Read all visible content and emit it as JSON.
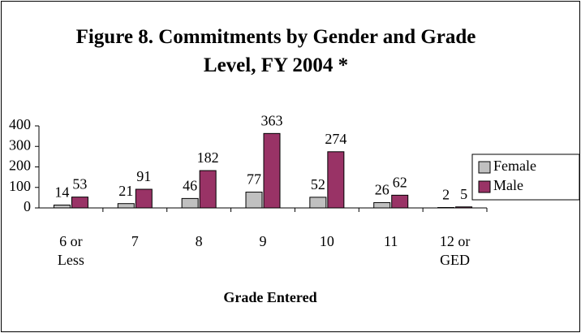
{
  "chart_data": {
    "type": "bar",
    "title": "Figure 8. Commitments by Gender and Grade Level, FY 2004 *",
    "x_label": "Grade Entered",
    "categories": [
      "6 or Less",
      "7",
      "8",
      "9",
      "10",
      "11",
      "12 or GED"
    ],
    "series": [
      {
        "name": "Female",
        "color": "#c0c0c0",
        "values": [
          14,
          21,
          46,
          77,
          52,
          26,
          2
        ]
      },
      {
        "name": "Male",
        "color": "#993366",
        "values": [
          53,
          91,
          182,
          363,
          274,
          62,
          5
        ]
      }
    ],
    "ylim": [
      0,
      400
    ],
    "yticks": [
      0,
      100,
      200,
      300,
      400
    ],
    "grid": false,
    "legend": "right"
  }
}
